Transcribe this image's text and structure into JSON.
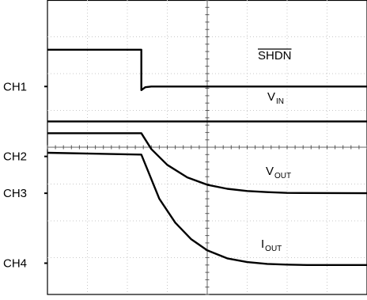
{
  "chart_data": {
    "type": "line",
    "title": "",
    "xlabel": "",
    "ylabel": "",
    "grid": true,
    "divisions": {
      "x": 8,
      "y": 8
    },
    "xlim": [
      0,
      8
    ],
    "ylim": [
      0,
      8
    ],
    "channels": [
      {
        "marker": "CH1",
        "level": 5.65
      },
      {
        "marker": "CH2",
        "level": 3.75
      },
      {
        "marker": "CH3",
        "level": 2.75
      },
      {
        "marker": "CH4",
        "level": 0.85
      }
    ],
    "series": [
      {
        "name": "SHDN",
        "label_main": "SHDN",
        "label_sub": "",
        "overline": true,
        "x": [
          0,
          2.35,
          2.35,
          2.45,
          2.6,
          8
        ],
        "y": [
          6.65,
          6.65,
          5.55,
          5.63,
          5.65,
          5.65
        ]
      },
      {
        "name": "VIN",
        "label_main": "V",
        "label_sub": "IN",
        "overline": false,
        "x": [
          0,
          8
        ],
        "y": [
          4.7,
          4.7
        ]
      },
      {
        "name": "VOUT",
        "label_main": "V",
        "label_sub": "OUT",
        "overline": false,
        "x": [
          0,
          2.35,
          2.6,
          3.0,
          3.5,
          4.0,
          4.5,
          5.0,
          5.5,
          6.0,
          8
        ],
        "y": [
          4.38,
          4.38,
          3.95,
          3.52,
          3.18,
          2.98,
          2.87,
          2.81,
          2.78,
          2.76,
          2.75
        ]
      },
      {
        "name": "IOUT",
        "label_main": "I",
        "label_sub": "OUT",
        "overline": false,
        "x": [
          0,
          2.35,
          2.5,
          2.8,
          3.2,
          3.6,
          4.0,
          4.5,
          5.0,
          5.5,
          6.0,
          6.5,
          8
        ],
        "y": [
          3.85,
          3.8,
          3.4,
          2.6,
          1.95,
          1.5,
          1.2,
          0.98,
          0.88,
          0.83,
          0.81,
          0.8,
          0.8
        ]
      }
    ]
  }
}
